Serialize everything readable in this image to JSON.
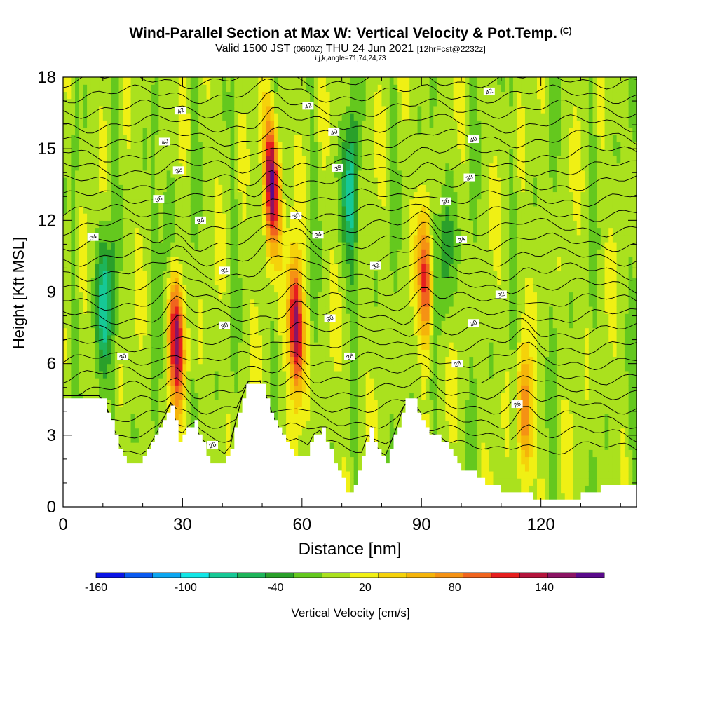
{
  "header": {
    "title": "Wind-Parallel Section at Max W: Vertical Velocity & Pot.Temp.",
    "title_mark": "(C)",
    "subtitle_a": "Valid 1500 JST",
    "subtitle_b": "(0600Z)",
    "subtitle_c": "THU 24 Jun 2021",
    "subtitle_d": "[12hrFcst@2232z]",
    "subtitle2": "i,j,k,angle=71,74,24,73"
  },
  "chart_data": {
    "type": "heatmap",
    "xlabel": "Distance [nm]",
    "ylabel": "Height [Kft MSL]",
    "xlim": [
      0,
      144
    ],
    "ylim": [
      0,
      18
    ],
    "x_ticks": [
      0,
      30,
      60,
      90,
      120
    ],
    "y_ticks": [
      0,
      3,
      6,
      9,
      12,
      15,
      18
    ],
    "colorbar": {
      "label": "Vertical Velocity [cm/s]",
      "range": [
        -160,
        180
      ],
      "tick_labels": [
        -160,
        -100,
        -40,
        20,
        80,
        140
      ],
      "colors": [
        "#0a14e6",
        "#0a5af0",
        "#0ca6f0",
        "#12e6e6",
        "#16c896",
        "#1eb45a",
        "#2aa02a",
        "#64c81e",
        "#aae11e",
        "#f0f014",
        "#f5d20a",
        "#f5b40a",
        "#f59214",
        "#f0641e",
        "#e61e1e",
        "#b4143c",
        "#8c1464",
        "#5a0a8c"
      ]
    },
    "terrain": [
      [
        0,
        4.6
      ],
      [
        10,
        4.6
      ],
      [
        12,
        3.5
      ],
      [
        14,
        2.5
      ],
      [
        16,
        1.7
      ],
      [
        19,
        1.7
      ],
      [
        21,
        2.3
      ],
      [
        24,
        3.2
      ],
      [
        27,
        4.3
      ],
      [
        28,
        3.5
      ],
      [
        29,
        2.8
      ],
      [
        31,
        3.3
      ],
      [
        33,
        3.5
      ],
      [
        35,
        2.6
      ],
      [
        37,
        1.9
      ],
      [
        40,
        1.7
      ],
      [
        42,
        2.5
      ],
      [
        44,
        4.0
      ],
      [
        46,
        5.2
      ],
      [
        50,
        5.2
      ],
      [
        52,
        4.0
      ],
      [
        55,
        3.0
      ],
      [
        57,
        2.4
      ],
      [
        59,
        2.0
      ],
      [
        61,
        2.2
      ],
      [
        63,
        3.0
      ],
      [
        65,
        3.2
      ],
      [
        67,
        2.3
      ],
      [
        69,
        1.5
      ],
      [
        71,
        0.7
      ],
      [
        73,
        0.8
      ],
      [
        75,
        2.2
      ],
      [
        77,
        3.2
      ],
      [
        79,
        2.3
      ],
      [
        81,
        1.8
      ],
      [
        82,
        2.5
      ],
      [
        84,
        3.4
      ],
      [
        86,
        4.4
      ],
      [
        88,
        4.5
      ],
      [
        90,
        3.5
      ],
      [
        92,
        3.0
      ],
      [
        94,
        3.0
      ],
      [
        96,
        2.7
      ],
      [
        98,
        2.2
      ],
      [
        100,
        1.5
      ],
      [
        103,
        1.4
      ],
      [
        106,
        1.0
      ],
      [
        110,
        0.7
      ],
      [
        115,
        0.7
      ],
      [
        118,
        0.4
      ],
      [
        124,
        0.4
      ],
      [
        128,
        0.4
      ],
      [
        132,
        0.6
      ],
      [
        136,
        0.9
      ],
      [
        144,
        1.0
      ]
    ],
    "updrafts": [
      {
        "x": 28.5,
        "z": 7.0,
        "amp": 155
      },
      {
        "x": 52.5,
        "z": 13.5,
        "amp": 180
      },
      {
        "x": 58.5,
        "z": 7.5,
        "amp": 165
      },
      {
        "x": 91,
        "z": 9.5,
        "amp": 110
      },
      {
        "x": 116,
        "z": 3.8,
        "amp": 85
      }
    ],
    "downdrafts": [
      {
        "x": 10.5,
        "z": 8.5,
        "amp": -80
      },
      {
        "x": 72,
        "z": 13.0,
        "amp": -75
      },
      {
        "x": 26,
        "z": 11.5,
        "amp": -35
      },
      {
        "x": 96,
        "z": 11.0,
        "amp": -45
      }
    ],
    "theta_labels": [
      {
        "text": "42",
        "x": 29.5,
        "z": 16.6
      },
      {
        "text": "42",
        "x": 61.5,
        "z": 16.8
      },
      {
        "text": "42",
        "x": 107,
        "z": 17.4
      },
      {
        "text": "40",
        "x": 25.5,
        "z": 15.3
      },
      {
        "text": "40",
        "x": 68,
        "z": 15.7
      },
      {
        "text": "40",
        "x": 103,
        "z": 15.4
      },
      {
        "text": "38",
        "x": 29,
        "z": 14.1
      },
      {
        "text": "38",
        "x": 69,
        "z": 14.2
      },
      {
        "text": "38",
        "x": 102,
        "z": 13.8
      },
      {
        "text": "36",
        "x": 24,
        "z": 12.9
      },
      {
        "text": "36",
        "x": 58.5,
        "z": 12.2
      },
      {
        "text": "36",
        "x": 96,
        "z": 12.8
      },
      {
        "text": "34",
        "x": 7.5,
        "z": 11.3
      },
      {
        "text": "34",
        "x": 34.5,
        "z": 12.0
      },
      {
        "text": "34",
        "x": 64,
        "z": 11.4
      },
      {
        "text": "34",
        "x": 100,
        "z": 11.2
      },
      {
        "text": "32",
        "x": 40.5,
        "z": 9.9
      },
      {
        "text": "32",
        "x": 78.5,
        "z": 10.1
      },
      {
        "text": "32",
        "x": 110,
        "z": 8.9
      },
      {
        "text": "30",
        "x": 15,
        "z": 6.3
      },
      {
        "text": "30",
        "x": 40.5,
        "z": 7.6
      },
      {
        "text": "30",
        "x": 67,
        "z": 7.9
      },
      {
        "text": "30",
        "x": 103,
        "z": 7.7
      },
      {
        "text": "28",
        "x": 72,
        "z": 6.3
      },
      {
        "text": "28",
        "x": 99,
        "z": 6.0
      },
      {
        "text": "28",
        "x": 37.5,
        "z": 2.6
      },
      {
        "text": "26",
        "x": 114,
        "z": 4.3
      }
    ]
  }
}
